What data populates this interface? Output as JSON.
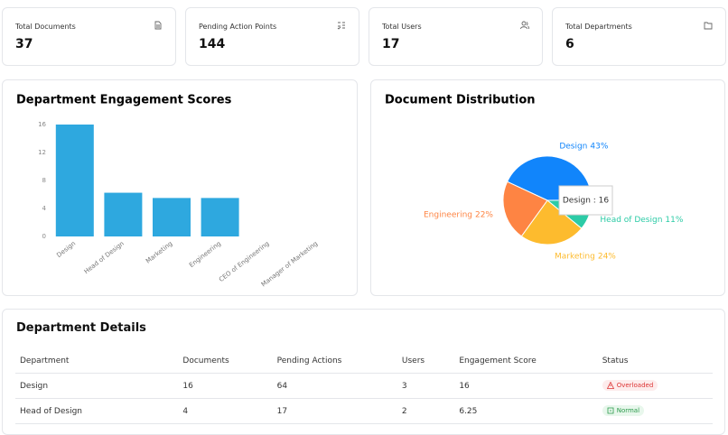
{
  "stats": [
    {
      "label": "Total Documents",
      "value": "37"
    },
    {
      "label": "Pending Action Points",
      "value": "144"
    },
    {
      "label": "Total Users",
      "value": "17"
    },
    {
      "label": "Total Departments",
      "value": "6"
    }
  ],
  "chart_data": [
    {
      "type": "bar",
      "title": "Department Engagement Scores",
      "categories": [
        "Design",
        "Head of Design",
        "Marketing",
        "Engineering",
        "CEO of Engineering",
        "Manager of Marketing"
      ],
      "values": [
        16,
        6.25,
        5.5,
        5.5,
        0,
        0
      ],
      "color": "#2ea8df",
      "ylim": [
        0,
        16
      ],
      "yticks": [
        0,
        4,
        8,
        12,
        16
      ]
    },
    {
      "type": "pie",
      "title": "Document Distribution",
      "categories": [
        "Design",
        "Head of Design",
        "Marketing",
        "Engineering"
      ],
      "values": [
        43,
        11,
        24,
        22
      ],
      "value_labels": [
        "43%",
        "11%",
        "24%",
        "22%"
      ],
      "colors": [
        "#1185fb",
        "#2ccba6",
        "#fdbb2e",
        "#fe8443"
      ],
      "tooltip": "Design : 16"
    }
  ],
  "table": {
    "title": "Department Details",
    "columns": [
      "Department",
      "Documents",
      "Pending Actions",
      "Users",
      "Engagement Score",
      "Status"
    ],
    "rows": [
      [
        "Design",
        "16",
        "64",
        "3",
        "16",
        "Overloaded"
      ],
      [
        "Head of Design",
        "4",
        "17",
        "2",
        "6.25",
        "Normal"
      ]
    ]
  }
}
